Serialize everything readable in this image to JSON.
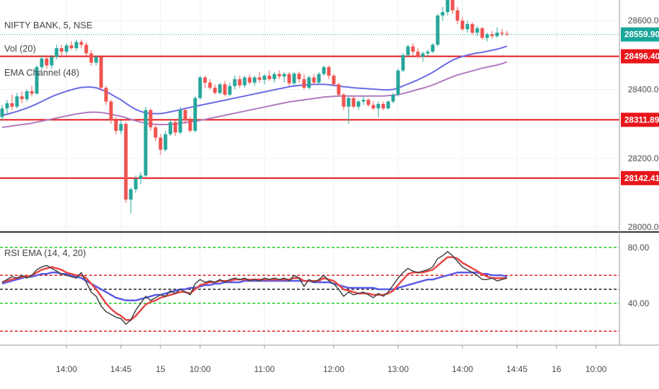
{
  "colors": {
    "up": "#26a69a",
    "down": "#ef5350",
    "ema_short": "#6a6ae6",
    "ema_long": "#b07bc0",
    "hline": "#e8161b",
    "rsi_line": "#424242",
    "rsi_ema": "#e84545",
    "rsi_signal": "#5a5ae6",
    "current_price_tag": "#17a69a",
    "red_tag": "#e8161b"
  },
  "header": {
    "symbol": "NIFTY BANK, 5, NSE",
    "vol": "Vol (20)",
    "ema_channel": "EMA Channel (48)",
    "rsi": "RSI EMA (14, 4, 20)"
  },
  "chart_data": [
    {
      "type": "candlestick",
      "title": "NIFTY BANK, 5, NSE",
      "ylim": [
        27990,
        28660
      ],
      "yticks": [
        {
          "value": 28000,
          "label": "28000.00"
        },
        {
          "value": 28200,
          "label": "28200.00"
        },
        {
          "value": 28400,
          "label": "28400.00"
        },
        {
          "value": 28600,
          "label": "28600.00"
        }
      ],
      "price_levels": [
        {
          "value": 28559.9,
          "label": "28559.90",
          "style": "dotted",
          "role": "current"
        },
        {
          "value": 28496.4,
          "label": "28496.40",
          "style": "solid",
          "role": "level"
        },
        {
          "value": 28311.89,
          "label": "28311.89",
          "style": "solid",
          "role": "level"
        },
        {
          "value": 28142.41,
          "label": "28142.41",
          "style": "solid",
          "role": "level"
        }
      ],
      "candles": [
        [
          28320,
          28355,
          28310,
          28345
        ],
        [
          28345,
          28370,
          28330,
          28360
        ],
        [
          28360,
          28385,
          28340,
          28350
        ],
        [
          28350,
          28390,
          28345,
          28380
        ],
        [
          28380,
          28395,
          28360,
          28372
        ],
        [
          28372,
          28400,
          28365,
          28395
        ],
        [
          28395,
          28410,
          28380,
          28388
        ],
        [
          28388,
          28470,
          28385,
          28465
        ],
        [
          28465,
          28500,
          28455,
          28490
        ],
        [
          28490,
          28500,
          28460,
          28470
        ],
        [
          28470,
          28500,
          28460,
          28495
        ],
        [
          28495,
          28530,
          28488,
          28520
        ],
        [
          28520,
          28530,
          28500,
          28510
        ],
        [
          28510,
          28535,
          28500,
          28528
        ],
        [
          28528,
          28540,
          28515,
          28520
        ],
        [
          28520,
          28545,
          28512,
          28538
        ],
        [
          28538,
          28545,
          28520,
          28530
        ],
        [
          28530,
          28538,
          28495,
          28505
        ],
        [
          28505,
          28515,
          28470,
          28478
        ],
        [
          28478,
          28500,
          28470,
          28495
        ],
        [
          28495,
          28498,
          28395,
          28405
        ],
        [
          28405,
          28410,
          28355,
          28365
        ],
        [
          28365,
          28370,
          28300,
          28310
        ],
        [
          28310,
          28320,
          28270,
          28280
        ],
        [
          28280,
          28310,
          28270,
          28300
        ],
        [
          28300,
          28305,
          28070,
          28080
        ],
        [
          28080,
          28115,
          28040,
          28110
        ],
        [
          28110,
          28150,
          28100,
          28140
        ],
        [
          28140,
          28160,
          28125,
          28150
        ],
        [
          28150,
          28350,
          28145,
          28340
        ],
        [
          28340,
          28345,
          28280,
          28290
        ],
        [
          28290,
          28300,
          28250,
          28260
        ],
        [
          28260,
          28270,
          28210,
          28225
        ],
        [
          28225,
          28280,
          28220,
          28270
        ],
        [
          28270,
          28315,
          28265,
          28305
        ],
        [
          28305,
          28310,
          28265,
          28275
        ],
        [
          28275,
          28350,
          28270,
          28340
        ],
        [
          28340,
          28345,
          28300,
          28310
        ],
        [
          28310,
          28320,
          28275,
          28280
        ],
        [
          28280,
          28380,
          28275,
          28375
        ],
        [
          28375,
          28440,
          28370,
          28435
        ],
        [
          28435,
          28440,
          28405,
          28420
        ],
        [
          28420,
          28430,
          28400,
          28405
        ],
        [
          28405,
          28415,
          28385,
          28390
        ],
        [
          28390,
          28420,
          28385,
          28415
        ],
        [
          28415,
          28425,
          28380,
          28385
        ],
        [
          28385,
          28420,
          28380,
          28410
        ],
        [
          28410,
          28440,
          28400,
          28430
        ],
        [
          28430,
          28440,
          28405,
          28412
        ],
        [
          28412,
          28440,
          28405,
          28435
        ],
        [
          28435,
          28445,
          28415,
          28420
        ],
        [
          28420,
          28440,
          28410,
          28435
        ],
        [
          28435,
          28450,
          28420,
          28428
        ],
        [
          28428,
          28445,
          28415,
          28440
        ],
        [
          28440,
          28455,
          28425,
          28430
        ],
        [
          28430,
          28450,
          28420,
          28445
        ],
        [
          28445,
          28455,
          28430,
          28438
        ],
        [
          28438,
          28450,
          28420,
          28445
        ],
        [
          28445,
          28450,
          28410,
          28418
        ],
        [
          28418,
          28450,
          28412,
          28446
        ],
        [
          28446,
          28452,
          28420,
          28430
        ],
        [
          28430,
          28445,
          28400,
          28405
        ],
        [
          28405,
          28440,
          28400,
          28435
        ],
        [
          28435,
          28445,
          28415,
          28420
        ],
        [
          28420,
          28450,
          28415,
          28445
        ],
        [
          28445,
          28470,
          28440,
          28465
        ],
        [
          28465,
          28470,
          28430,
          28440
        ],
        [
          28440,
          28445,
          28410,
          28415
        ],
        [
          28415,
          28420,
          28380,
          28385
        ],
        [
          28385,
          28390,
          28340,
          28350
        ],
        [
          28350,
          28380,
          28300,
          28375
        ],
        [
          28375,
          28380,
          28345,
          28350
        ],
        [
          28350,
          28370,
          28340,
          28365
        ],
        [
          28365,
          28380,
          28355,
          28370
        ],
        [
          28370,
          28375,
          28350,
          28355
        ],
        [
          28355,
          28365,
          28340,
          28345
        ],
        [
          28345,
          28365,
          28320,
          28358
        ],
        [
          28358,
          28365,
          28340,
          28345
        ],
        [
          28345,
          28368,
          28342,
          28365
        ],
        [
          28365,
          28390,
          28360,
          28385
        ],
        [
          28385,
          28460,
          28380,
          28455
        ],
        [
          28455,
          28505,
          28450,
          28500
        ],
        [
          28500,
          28530,
          28495,
          28525
        ],
        [
          28525,
          28535,
          28500,
          28510
        ],
        [
          28510,
          28520,
          28490,
          28495
        ],
        [
          28495,
          28510,
          28480,
          28505
        ],
        [
          28505,
          28515,
          28495,
          28510
        ],
        [
          28510,
          28535,
          28505,
          28530
        ],
        [
          28530,
          28620,
          28525,
          28615
        ],
        [
          28615,
          28640,
          28600,
          28625
        ],
        [
          28625,
          28680,
          28615,
          28665
        ],
        [
          28665,
          28670,
          28620,
          28630
        ],
        [
          28630,
          28640,
          28590,
          28600
        ],
        [
          28600,
          28610,
          28570,
          28575
        ],
        [
          28575,
          28600,
          28565,
          28590
        ],
        [
          28590,
          28595,
          28560,
          28565
        ],
        [
          28565,
          28585,
          28555,
          28578
        ],
        [
          28578,
          28582,
          28545,
          28550
        ],
        [
          28550,
          28565,
          28540,
          28560
        ],
        [
          28560,
          28570,
          28548,
          28555
        ],
        [
          28555,
          28580,
          28550,
          28565
        ],
        [
          28565,
          28575,
          28555,
          28562
        ],
        [
          28562,
          28570,
          28555,
          28560
        ]
      ],
      "ema_short": [
        28325,
        28328,
        28332,
        28336,
        28341,
        28346,
        28352,
        28358,
        28365,
        28372,
        28379,
        28385,
        28390,
        28395,
        28399,
        28403,
        28406,
        28407,
        28407,
        28405,
        28400,
        28394,
        28386,
        28378,
        28370,
        28360,
        28350,
        28342,
        28336,
        28332,
        28330,
        28330,
        28330,
        28332,
        28335,
        28338,
        28341,
        28345,
        28348,
        28351,
        28354,
        28357,
        28360,
        28363,
        28366,
        28369,
        28372,
        28375,
        28378,
        28381,
        28384,
        28387,
        28390,
        28393,
        28396,
        28399,
        28402,
        28405,
        28408,
        28410,
        28412,
        28413,
        28414,
        28415,
        28415,
        28415,
        28414,
        28412,
        28410,
        28408,
        28407,
        28405,
        28404,
        28403,
        28402,
        28401,
        28400,
        28399,
        28399,
        28400,
        28404,
        28410,
        28416,
        28422,
        28428,
        28435,
        28442,
        28450,
        28459,
        28468,
        28477,
        28485,
        28491,
        28496,
        28500,
        28503,
        28506,
        28508,
        28511,
        28514,
        28517,
        28521,
        28526
      ],
      "ema_long": [
        28290,
        28292,
        28294,
        28296,
        28298,
        28300,
        28302,
        28305,
        28308,
        28311,
        28314,
        28317,
        28320,
        28323,
        28326,
        28329,
        28331,
        28333,
        28334,
        28334,
        28333,
        28331,
        28328,
        28325,
        28322,
        28318,
        28313,
        28309,
        28305,
        28302,
        28300,
        28299,
        28298,
        28298,
        28299,
        28300,
        28302,
        28304,
        28306,
        28308,
        28310,
        28313,
        28316,
        28319,
        28322,
        28325,
        28328,
        28331,
        28334,
        28337,
        28340,
        28343,
        28346,
        28349,
        28352,
        28355,
        28358,
        28361,
        28364,
        28366,
        28368,
        28370,
        28372,
        28374,
        28376,
        28378,
        28379,
        28380,
        28381,
        28381,
        28381,
        28381,
        28381,
        28381,
        28381,
        28381,
        28381,
        28381,
        28382,
        28383,
        28385,
        28388,
        28392,
        28396,
        28400,
        28404,
        28408,
        28413,
        28419,
        28425,
        28431,
        28437,
        28442,
        28446,
        28450,
        28454,
        28458,
        28462,
        28465,
        28468,
        28471,
        28475,
        28480
      ]
    },
    {
      "type": "line",
      "title": "RSI EMA (14, 4, 20)",
      "ylim": [
        10,
        90
      ],
      "yticks": [
        {
          "value": 40,
          "label": "40.00"
        },
        {
          "value": 80,
          "label": "80.00"
        }
      ],
      "levels": [
        {
          "value": 80,
          "color": "green"
        },
        {
          "value": 60,
          "color": "red"
        },
        {
          "value": 50,
          "color": "black"
        },
        {
          "value": 40,
          "color": "green"
        },
        {
          "value": 20,
          "color": "red"
        }
      ],
      "rsi": [
        55,
        57,
        59,
        58,
        60,
        58,
        60,
        64,
        66,
        67,
        65,
        63,
        61,
        60,
        59,
        58,
        62,
        55,
        48,
        45,
        38,
        34,
        32,
        30,
        29,
        25,
        28,
        35,
        40,
        45,
        42,
        44,
        46,
        45,
        49,
        47,
        50,
        48,
        46,
        54,
        57,
        55,
        56,
        55,
        57,
        55,
        57,
        58,
        57,
        58,
        56,
        57,
        56,
        58,
        57,
        58,
        57,
        58,
        56,
        60,
        58,
        52,
        57,
        55,
        57,
        60,
        56,
        54,
        50,
        45,
        48,
        46,
        47,
        48,
        46,
        44,
        47,
        45,
        48,
        53,
        58,
        62,
        65,
        63,
        62,
        63,
        64,
        66,
        72,
        74,
        77,
        74,
        70,
        66,
        64,
        62,
        60,
        57,
        57,
        58,
        56,
        57,
        58
      ],
      "rsi_ema": [
        55,
        56,
        57,
        58,
        59,
        59,
        60,
        62,
        64,
        65,
        66,
        65,
        64,
        62,
        61,
        60,
        60,
        58,
        54,
        50,
        45,
        40,
        36,
        33,
        31,
        28,
        28,
        31,
        35,
        39,
        41,
        42,
        44,
        45,
        46,
        47,
        48,
        48,
        47,
        50,
        53,
        54,
        55,
        55,
        56,
        56,
        56,
        57,
        57,
        57,
        57,
        57,
        57,
        57,
        57,
        57,
        57,
        57,
        57,
        58,
        58,
        56,
        56,
        56,
        56,
        58,
        57,
        56,
        53,
        50,
        49,
        48,
        47,
        47,
        47,
        46,
        46,
        46,
        47,
        49,
        53,
        57,
        61,
        62,
        62,
        62,
        63,
        64,
        67,
        70,
        73,
        73,
        72,
        69,
        67,
        65,
        63,
        61,
        59,
        58,
        58,
        58,
        58
      ],
      "rsi_signal": [
        54,
        55,
        56,
        57,
        58,
        59,
        59,
        60,
        61,
        61,
        62,
        62,
        61,
        61,
        60,
        59,
        58,
        56,
        54,
        52,
        50,
        48,
        46,
        44,
        43,
        42,
        42,
        42,
        43,
        44,
        45,
        46,
        46,
        47,
        48,
        49,
        50,
        50,
        51,
        51,
        52,
        53,
        53,
        54,
        54,
        55,
        55,
        55,
        55,
        56,
        56,
        56,
        56,
        56,
        56,
        56,
        56,
        56,
        56,
        56,
        56,
        56,
        56,
        55,
        55,
        55,
        55,
        54,
        53,
        52,
        51,
        51,
        51,
        51,
        51,
        51,
        50,
        50,
        50,
        50,
        51,
        52,
        53,
        54,
        55,
        56,
        57,
        57,
        58,
        59,
        60,
        61,
        62,
        62,
        62,
        62,
        62,
        61,
        61,
        60,
        60,
        60,
        59
      ]
    }
  ],
  "time_axis": {
    "ticks": [
      {
        "label": "14:00",
        "candle": 13
      },
      {
        "label": "14:45",
        "candle": 24
      },
      {
        "label": "15",
        "candle": 32
      },
      {
        "label": "10:00",
        "candle": 40
      },
      {
        "label": "11:00",
        "candle": 53
      },
      {
        "label": "12:00",
        "candle": 67
      },
      {
        "label": "13:00",
        "candle": 80
      },
      {
        "label": "14:00",
        "candle": 93
      },
      {
        "label": "14:45",
        "candle": 104
      },
      {
        "label": "16",
        "candle": 112
      },
      {
        "label": "10:00",
        "candle": 120
      }
    ]
  }
}
